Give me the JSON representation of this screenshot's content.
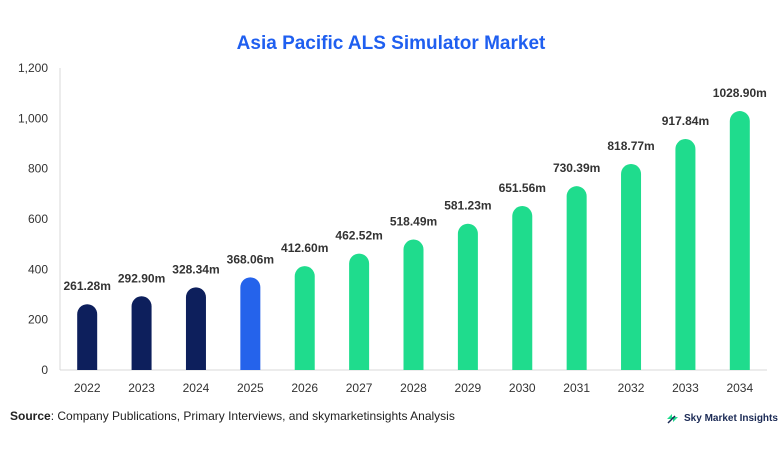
{
  "chart_data": {
    "type": "bar",
    "title": "Asia Pacific ALS Simulator Market",
    "categories": [
      "2022",
      "2023",
      "2024",
      "2025",
      "2026",
      "2027",
      "2028",
      "2029",
      "2030",
      "2031",
      "2032",
      "2033",
      "2034"
    ],
    "values": [
      261.28,
      292.9,
      328.34,
      368.06,
      412.6,
      462.52,
      518.49,
      581.23,
      651.56,
      730.39,
      818.77,
      917.84,
      1028.9
    ],
    "data_labels": [
      "261.28m",
      "292.90m",
      "328.34m",
      "368.06m",
      "412.60m",
      "462.52m",
      "518.49m",
      "581.23m",
      "651.56m",
      "730.39m",
      "818.77m",
      "917.84m",
      "1028.90m"
    ],
    "bar_colors": [
      "#0d1f5c",
      "#0d1f5c",
      "#0d1f5c",
      "#2563eb",
      "#1fdc8d",
      "#1fdc8d",
      "#1fdc8d",
      "#1fdc8d",
      "#1fdc8d",
      "#1fdc8d",
      "#1fdc8d",
      "#1fdc8d",
      "#1fdc8d"
    ],
    "yticks": [
      0,
      200,
      400,
      600,
      800,
      1000,
      1200
    ],
    "ytick_labels": [
      "0",
      "200",
      "400",
      "600",
      "800",
      "1,000",
      "1,200"
    ],
    "ylim": [
      0,
      1200
    ],
    "xlabel": "",
    "ylabel": "",
    "grid": false,
    "title_color": "#1f5ff0"
  },
  "source": {
    "label": "Source",
    "text": ": Company Publications, Primary Interviews, and skymarketinsights Analysis"
  },
  "logo": {
    "icon": "sky-market-insights-logo-icon",
    "text": "Sky Market Insights"
  }
}
